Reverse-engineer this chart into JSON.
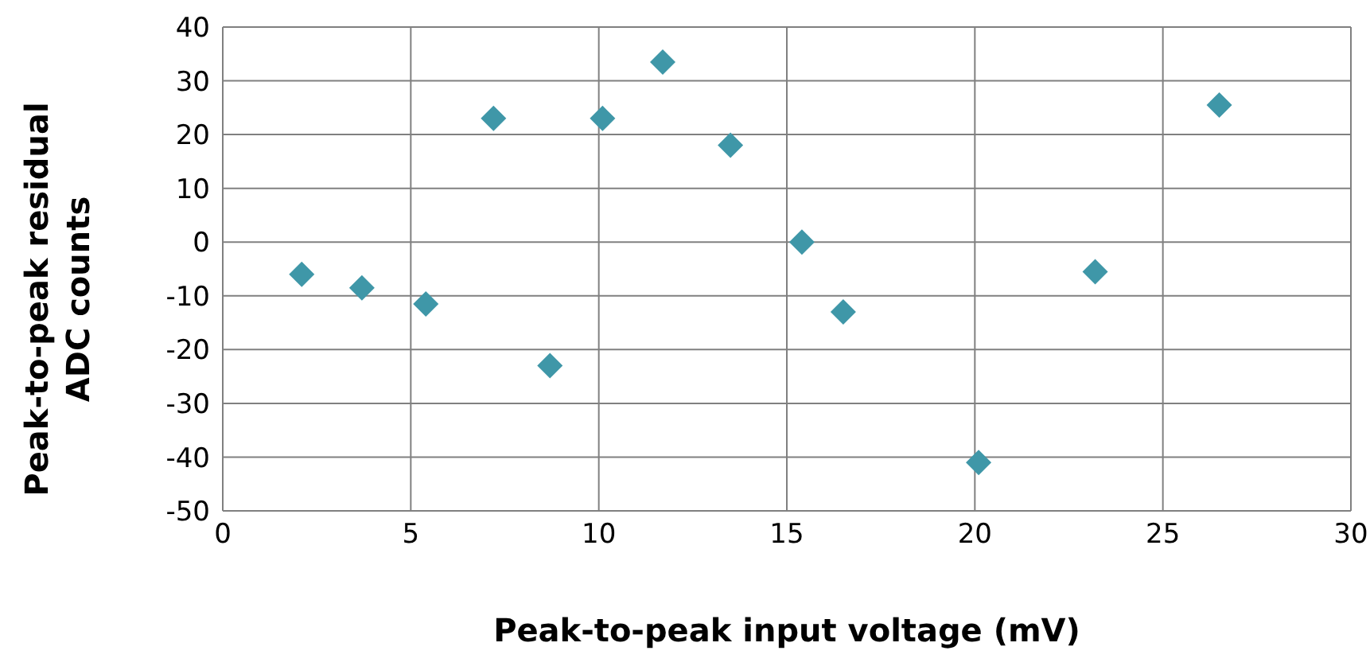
{
  "chart_data": {
    "type": "scatter",
    "xlabel": "Peak-to-peak input voltage (mV)",
    "ylabel": "Peak-to-peak residual ADC counts",
    "x": [
      2.1,
      3.7,
      5.4,
      7.2,
      8.7,
      10.1,
      11.7,
      13.5,
      15.4,
      16.5,
      20.1,
      23.2,
      26.5
    ],
    "series": [
      {
        "color": "#3f97a8",
        "values": [
          -6,
          -8.5,
          -11.5,
          23,
          -23,
          23,
          33.5,
          18,
          0,
          -13,
          -41,
          -5.5,
          25.5
        ]
      }
    ],
    "xlim": [
      0,
      30
    ],
    "xticks": [
      0,
      5,
      10,
      15,
      20,
      25,
      30
    ],
    "ylim": [
      -50,
      40
    ],
    "yticks": [
      -50,
      -40,
      -30,
      -20,
      -10,
      0,
      10,
      20,
      30,
      40
    ],
    "grid": true,
    "marker": "diamond"
  }
}
